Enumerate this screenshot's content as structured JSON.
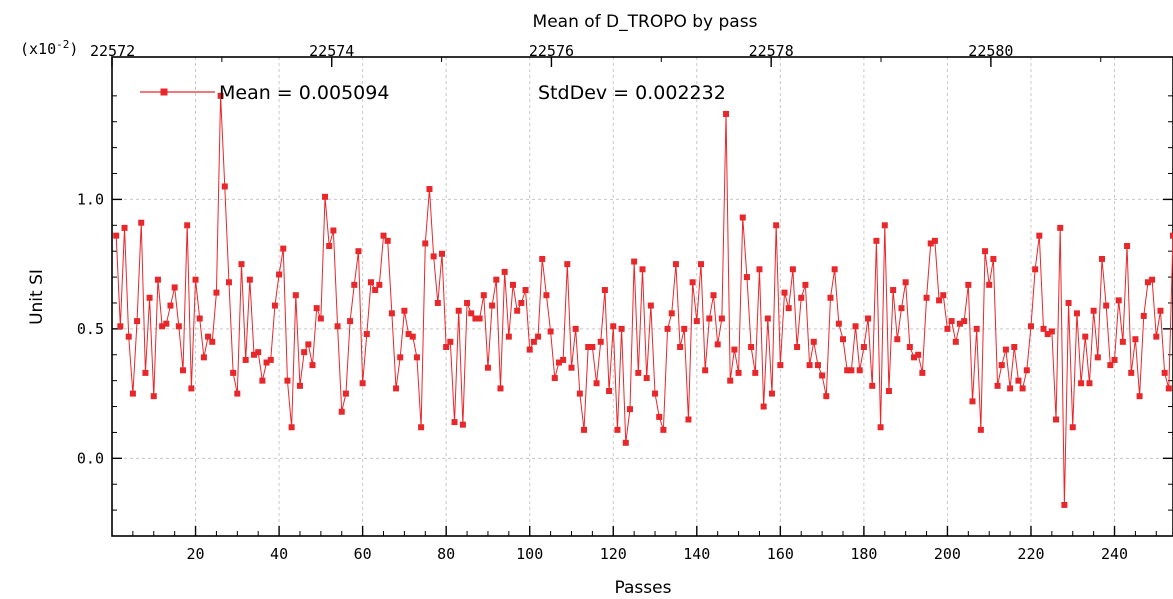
{
  "chart_data": {
    "type": "line",
    "title": "Mean of D_TROPO by pass",
    "xlabel": "Passes",
    "ylabel": "Unit SI",
    "y_multiplier": "(x10",
    "y_multiplier_exp": "-2",
    "y_multiplier_close": ")",
    "xlim": [
      0,
      254
    ],
    "ylim": [
      -0.3,
      1.55
    ],
    "x_ticks": [
      "20",
      "40",
      "60",
      "80",
      "100",
      "120",
      "140",
      "160",
      "180",
      "200",
      "220",
      "240"
    ],
    "x_tick_values": [
      20,
      40,
      60,
      80,
      100,
      120,
      140,
      160,
      180,
      200,
      220,
      240
    ],
    "y_ticks": [
      "0.0",
      "0.5",
      "1.0"
    ],
    "y_tick_values": [
      0.0,
      0.5,
      1.0
    ],
    "top_ticks": [
      "22572",
      "22574",
      "22576",
      "22578",
      "22580"
    ],
    "top_tick_values": [
      0,
      52.6,
      105.2,
      157.8,
      210.4
    ],
    "grid": true,
    "legend_position": "top-left",
    "series": [
      {
        "name": "",
        "color": "#e8272b",
        "values": [
          0.86,
          0.51,
          0.89,
          0.47,
          0.25,
          0.53,
          0.91,
          0.33,
          0.62,
          0.24,
          0.69,
          0.51,
          0.52,
          0.59,
          0.66,
          0.51,
          0.34,
          0.9,
          0.27,
          0.69,
          0.54,
          0.39,
          0.47,
          0.45,
          0.64,
          1.4,
          1.05,
          0.68,
          0.33,
          0.25,
          0.75,
          0.38,
          0.69,
          0.4,
          0.41,
          0.3,
          0.37,
          0.38,
          0.59,
          0.71,
          0.81,
          0.3,
          0.12,
          0.63,
          0.28,
          0.41,
          0.44,
          0.36,
          0.58,
          0.54,
          1.01,
          0.82,
          0.88,
          0.51,
          0.18,
          0.25,
          0.53,
          0.67,
          0.8,
          0.29,
          0.48,
          0.68,
          0.65,
          0.67,
          0.86,
          0.84,
          0.56,
          0.27,
          0.39,
          0.57,
          0.48,
          0.47,
          0.39,
          0.12,
          0.83,
          1.04,
          0.78,
          0.6,
          0.79,
          0.43,
          0.45,
          0.14,
          0.57,
          0.13,
          0.6,
          0.56,
          0.54,
          0.54,
          0.63,
          0.35,
          0.59,
          0.69,
          0.27,
          0.72,
          0.47,
          0.67,
          0.57,
          0.6,
          0.65,
          0.42,
          0.45,
          0.47,
          0.77,
          0.63,
          0.49,
          0.31,
          0.37,
          0.38,
          0.75,
          0.35,
          0.5,
          0.25,
          0.11,
          0.43,
          0.43,
          0.29,
          0.45,
          0.65,
          0.26,
          0.51,
          0.11,
          0.5,
          0.06,
          0.19,
          0.76,
          0.33,
          0.73,
          0.31,
          0.59,
          0.25,
          0.16,
          0.11,
          0.5,
          0.56,
          0.75,
          0.43,
          0.5,
          0.15,
          0.68,
          0.53,
          0.75,
          0.34,
          0.54,
          0.63,
          0.44,
          0.54,
          1.33,
          0.3,
          0.42,
          0.33,
          0.93,
          0.7,
          0.43,
          0.33,
          0.73,
          0.2,
          0.54,
          0.25,
          0.9,
          0.36,
          0.64,
          0.58,
          0.73,
          0.43,
          0.62,
          0.67,
          0.36,
          0.45,
          0.36,
          0.32,
          0.24,
          0.62,
          0.73,
          0.52,
          0.46,
          0.34,
          0.34,
          0.51,
          0.34,
          0.43,
          0.54,
          0.28,
          0.84,
          0.12,
          0.9,
          0.26,
          0.65,
          0.46,
          0.58,
          0.68,
          0.43,
          0.39,
          0.4,
          0.33,
          0.62,
          0.83,
          0.84,
          0.61,
          0.63,
          0.5,
          0.53,
          0.45,
          0.52,
          0.53,
          0.67,
          0.22,
          0.5,
          0.11,
          0.8,
          0.67,
          0.77,
          0.28,
          0.36,
          0.42,
          0.27,
          0.43,
          0.3,
          0.27,
          0.34,
          0.51,
          0.73,
          0.86,
          0.5,
          0.48,
          0.49,
          0.15,
          0.89,
          -0.18,
          0.6,
          0.12,
          0.56,
          0.29,
          0.47,
          0.29,
          0.57,
          0.39,
          0.77,
          0.59,
          0.36,
          0.38,
          0.61,
          0.45,
          0.82,
          0.33,
          0.46,
          0.24,
          0.55,
          0.68,
          0.69,
          0.47,
          0.57,
          0.33,
          0.27,
          0.86
        ]
      }
    ],
    "legend": {
      "mean_text": "Mean = 0.005094",
      "stddev_text": "StdDev = 0.002232"
    }
  }
}
